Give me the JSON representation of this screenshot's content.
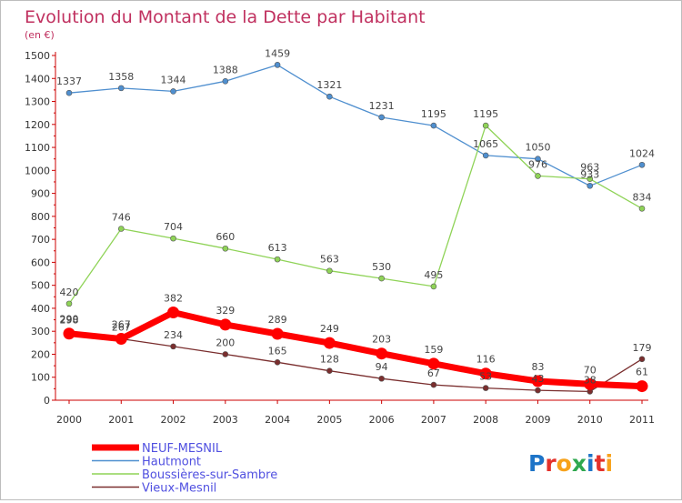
{
  "chart_data": {
    "type": "line",
    "title": "Evolution du Montant de la Dette par Habitant",
    "subtitle": "(en €)",
    "categories": [
      "2000",
      "2001",
      "2002",
      "2003",
      "2004",
      "2005",
      "2006",
      "2007",
      "2008",
      "2009",
      "2010",
      "2011"
    ],
    "ylim": [
      0,
      1500
    ],
    "yticks": [
      0,
      100,
      200,
      300,
      400,
      500,
      600,
      700,
      800,
      900,
      1000,
      1100,
      1200,
      1300,
      1400,
      1500
    ],
    "grid": false,
    "legend_position": "bottom-left",
    "series": [
      {
        "name": "Hautmont",
        "color": "#4f8fcf",
        "values": [
          1337,
          1358,
          1344,
          1388,
          1459,
          1321,
          1231,
          1195,
          1065,
          1050,
          933,
          1024
        ]
      },
      {
        "name": "Boussières-sur-Sambre",
        "color": "#8fd357",
        "values": [
          420,
          746,
          704,
          660,
          613,
          563,
          530,
          495,
          1195,
          976,
          963,
          834
        ]
      },
      {
        "name": "Vieux-Mesnil",
        "color": "#7a2e2e",
        "values": [
          298,
          267,
          234,
          200,
          165,
          128,
          94,
          67,
          53,
          43,
          38,
          179
        ]
      },
      {
        "name": "NEUF-MESNIL",
        "color": "#ff0000",
        "values": [
          290,
          267,
          382,
          329,
          289,
          249,
          203,
          159,
          116,
          83,
          70,
          61
        ]
      }
    ],
    "legend_order": [
      "NEUF-MESNIL",
      "Hautmont",
      "Boussières-sur-Sambre",
      "Vieux-Mesnil"
    ]
  },
  "brand": {
    "logo_text": "Proxiti"
  }
}
